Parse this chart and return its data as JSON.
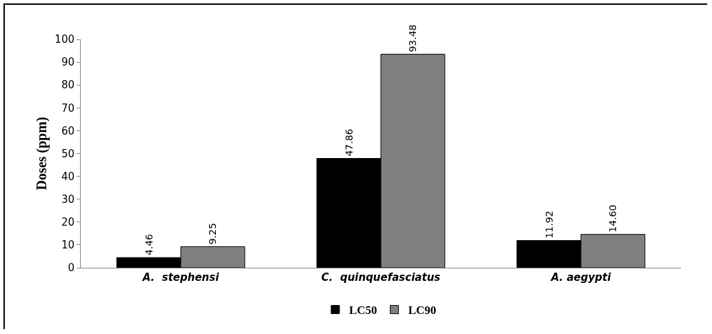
{
  "chart_data": {
    "type": "bar",
    "ylabel": "Doses (ppm)",
    "categories": [
      "A.  stephensi",
      "C.  quinquefasciatus",
      "A. aegypti"
    ],
    "series": [
      {
        "name": "LC50",
        "color": "#000000",
        "values": [
          4.46,
          47.86,
          11.92
        ],
        "value_labels": [
          "4.46",
          "47.86",
          "11.92"
        ]
      },
      {
        "name": "LC90",
        "color": "#808080",
        "values": [
          9.25,
          93.48,
          14.6
        ],
        "value_labels": [
          "9.25",
          "93.48",
          "14.60"
        ]
      }
    ],
    "ylim": [
      0,
      100
    ],
    "yticks": [
      0,
      10,
      20,
      30,
      40,
      50,
      60,
      70,
      80,
      90,
      100
    ],
    "grid": false,
    "legend": "bottom"
  }
}
